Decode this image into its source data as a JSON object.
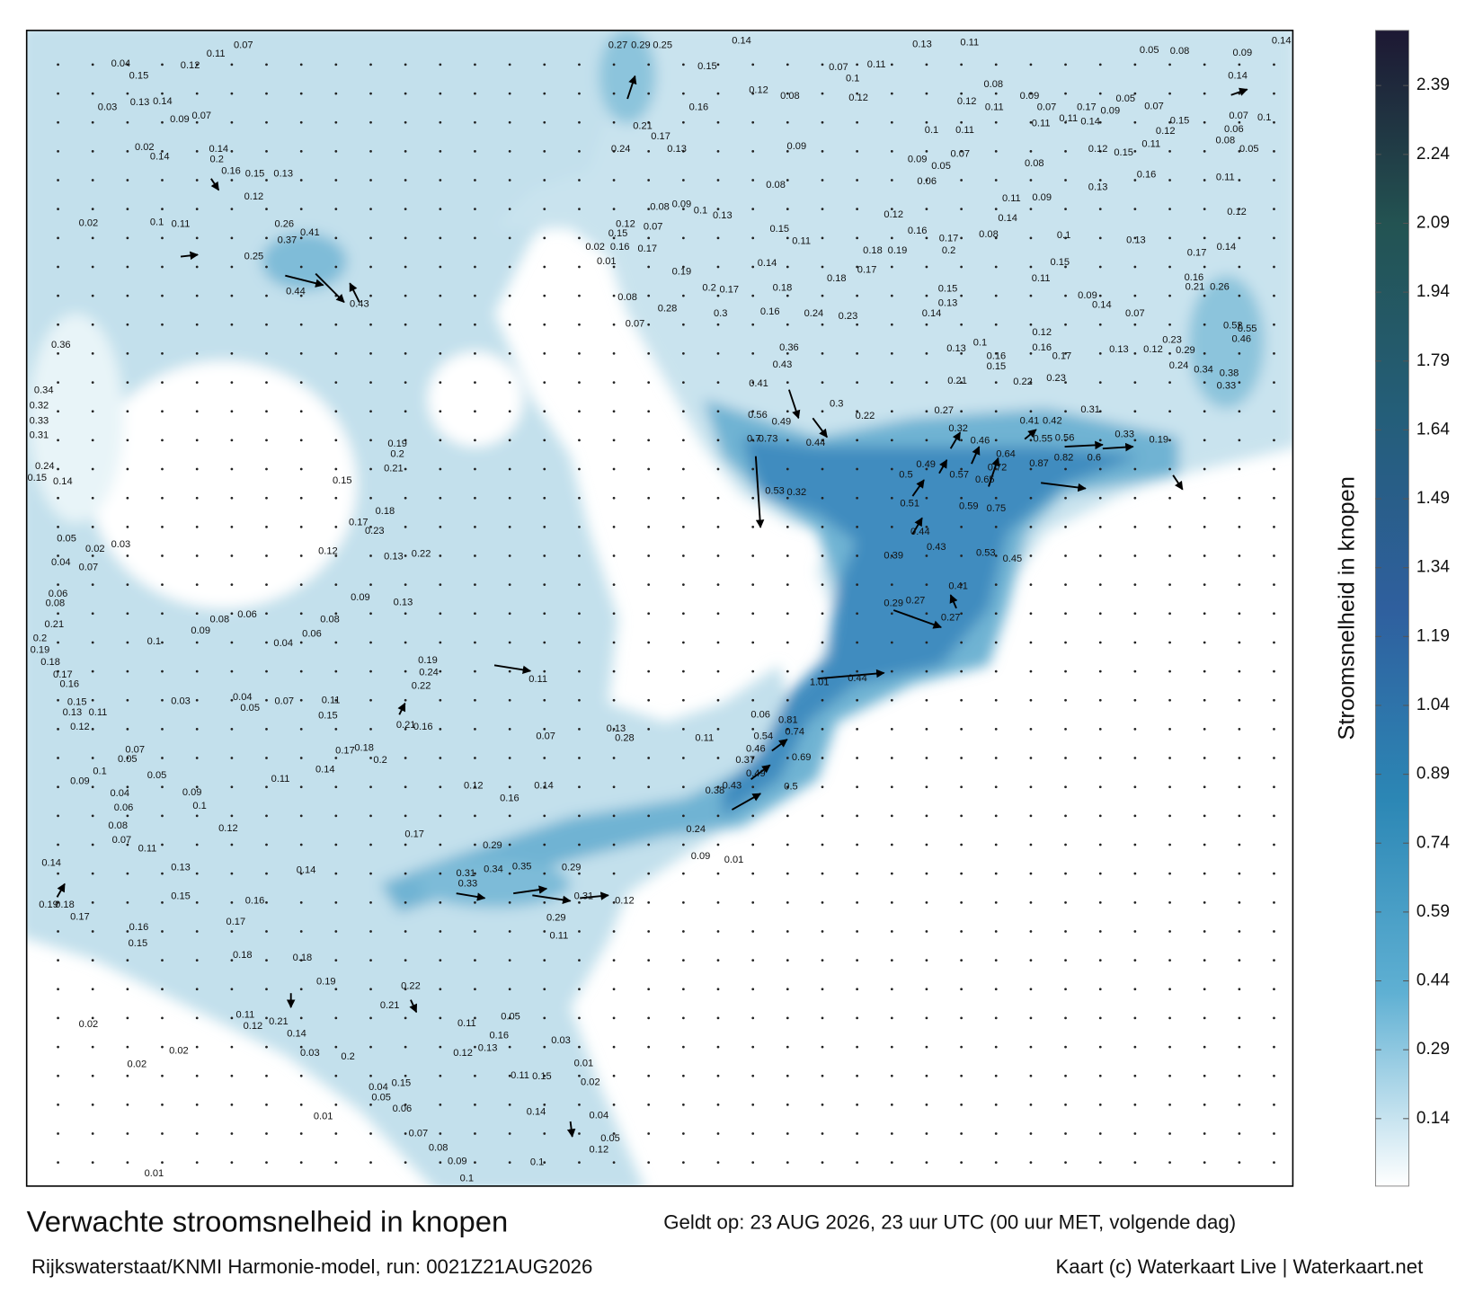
{
  "map": {
    "colorbar_label": "Stroomsnelheid in knopen",
    "colorbar_ticks": [
      0.14,
      0.29,
      0.44,
      0.59,
      0.74,
      0.89,
      1.04,
      1.19,
      1.34,
      1.49,
      1.64,
      1.79,
      1.94,
      2.09,
      2.24,
      2.39
    ],
    "colorbar_colors": [
      "#ffffff",
      "#5fb0d3",
      "#2c87b5",
      "#2f5f9e",
      "#245e79",
      "#235352",
      "#1d1833"
    ],
    "speed_labels": [
      0.27,
      0.29,
      0.25,
      0.14,
      0.13,
      0.11,
      0.14,
      0.15,
      0.12,
      0.08,
      0.16,
      0.21,
      0.17,
      0.13,
      0.09,
      0.24,
      0.08,
      0.12,
      0.16,
      0.17,
      0.2,
      0.19,
      0.2,
      0.17,
      0.18,
      0.28,
      0.3,
      0.16,
      0.24,
      0.23,
      0.36,
      0.43,
      0.41,
      0.56,
      0.49,
      0.7,
      0.73,
      0.44,
      0.53,
      0.32,
      0.3,
      0.22,
      0.27,
      0.32,
      0.46,
      0.41,
      0.42,
      0.31,
      0.33,
      0.19,
      0.55,
      0.56,
      0.64,
      0.72,
      0.87,
      0.82,
      0.6,
      0.49,
      0.5,
      0.57,
      0.65,
      0.51,
      0.59,
      0.75,
      0.44,
      0.43,
      0.53,
      0.45,
      0.39,
      0.29,
      0.27,
      0.41,
      0.27,
      0.44,
      1.01,
      0.81,
      0.74,
      0.54,
      0.46,
      0.37,
      0.49,
      0.69,
      0.5,
      0.43,
      0.38,
      0.24,
      0.09,
      0.01,
      0.35,
      0.34,
      0.31,
      0.33,
      0.29,
      0.31,
      0.12,
      0.29,
      0.11,
      0.19,
      0.18,
      0.17,
      0.16,
      0.15,
      0.14,
      0.13,
      0.15,
      0.16,
      0.17,
      0.18,
      0.18,
      0.19,
      0.21,
      0.22,
      0.12,
      0.11,
      0.14,
      0.17,
      0.29,
      0.16,
      0.14,
      0.12,
      0.07,
      0.13,
      0.28,
      0.11,
      0.06,
      0.37,
      0.41,
      0.44,
      0.43,
      0.26,
      0.25,
      0.19,
      0.2,
      0.21,
      0.15,
      0.18,
      0.17,
      0.23,
      0.12,
      0.13,
      0.22,
      0.24,
      0.22,
      0.19,
      0.11,
      0.21,
      0.16,
      0.17,
      0.18,
      0.2,
      0.14,
      0.11,
      0.36,
      0.34,
      0.32,
      0.33,
      0.31,
      0.24,
      0.15,
      0.14,
      0.16,
      0.21,
      0.26,
      0.46,
      0.52,
      0.55,
      0.33,
      0.34,
      0.38,
      0.24,
      0.29,
      0.23,
      0.12,
      0.14,
      0.17,
      0.14,
      0.1,
      0.1,
      0.09,
      0.08,
      0.07,
      0.06,
      0.05,
      0.15,
      0.04,
      0.01,
      0.02,
      0.02,
      0.02,
      0.01,
      0.03,
      0.2,
      0.14,
      0.21,
      0.12,
      0.11,
      0.11,
      0.13,
      0.12,
      0.16,
      0.05,
      0.03,
      0.01,
      0.02,
      0.04,
      0.05,
      0.12,
      0.11,
      0.15,
      0.04,
      0.15,
      0.12,
      0.11,
      0.07,
      0.13,
      0.14,
      0.09,
      0.07,
      0.02,
      0.14,
      0.14,
      0.2,
      0.16,
      0.15,
      0.13,
      0.12,
      0.02,
      0.1,
      0.11,
      0.03,
      0.05,
      0.02,
      0.03,
      0.04,
      0.07,
      0.06,
      0.08,
      0.21,
      0.2,
      0.19,
      0.18,
      0.17,
      0.16,
      0.15,
      0.13,
      0.11,
      0.12,
      0.09,
      0.1,
      0.05,
      0.07,
      0.04,
      0.06,
      0.08,
      0.07,
      0.09,
      0.1,
      0.05,
      0.03,
      0.04,
      0.05,
      0.07,
      0.11,
      0.15,
      0.1,
      0.09,
      0.08,
      0.06,
      0.04,
      0.06,
      0.08,
      0.09,
      0.13,
      0.05,
      0.08,
      0.09,
      0.14,
      0.15,
      0.14,
      0.11,
      0.15,
      0.13,
      0.1,
      0.09,
      0.08,
      0.07,
      0.12,
      0.15,
      0.17,
      0.16,
      0.01,
      0.02,
      0.08,
      0.07,
      0.18,
      0.17,
      0.18,
      0.19,
      0.15,
      0.13,
      0.14,
      0.13,
      0.1,
      0.15,
      0.16,
      0.21,
      0.22,
      0.23,
      0.12,
      0.16,
      0.17,
      0.13,
      0.12,
      0.07,
      0.11,
      0.15,
      0.09,
      0.14,
      0.1,
      0.13,
      0.14,
      0.08,
      0.11,
      0.09,
      0.13,
      0.16,
      0.11,
      0.08,
      0.12,
      0.15,
      0.11,
      0.12,
      0.07,
      0.06,
      0.08,
      0.05,
      0.1,
      0.09,
      0.05,
      0.07,
      0.06,
      0.1,
      0.11,
      0.12,
      0.11,
      0.08,
      0.09,
      0.07,
      0.11,
      0.17,
      0.11,
      0.14,
      0.09,
      0.05,
      0.07,
      0.1,
      0.12,
      0.07,
      0.11
    ]
  },
  "footer": {
    "title": "Verwachte stroomsnelheid in knopen",
    "valid": "Geldt op: 23 AUG 2026, 23 uur UTC (00 uur MET, volgende dag)",
    "model": "Rijkswaterstaat/KNMI Harmonie-model, run: 0021Z21AUG2026",
    "credit": "Kaart (c) Waterkaart Live | Waterkaart.net"
  }
}
